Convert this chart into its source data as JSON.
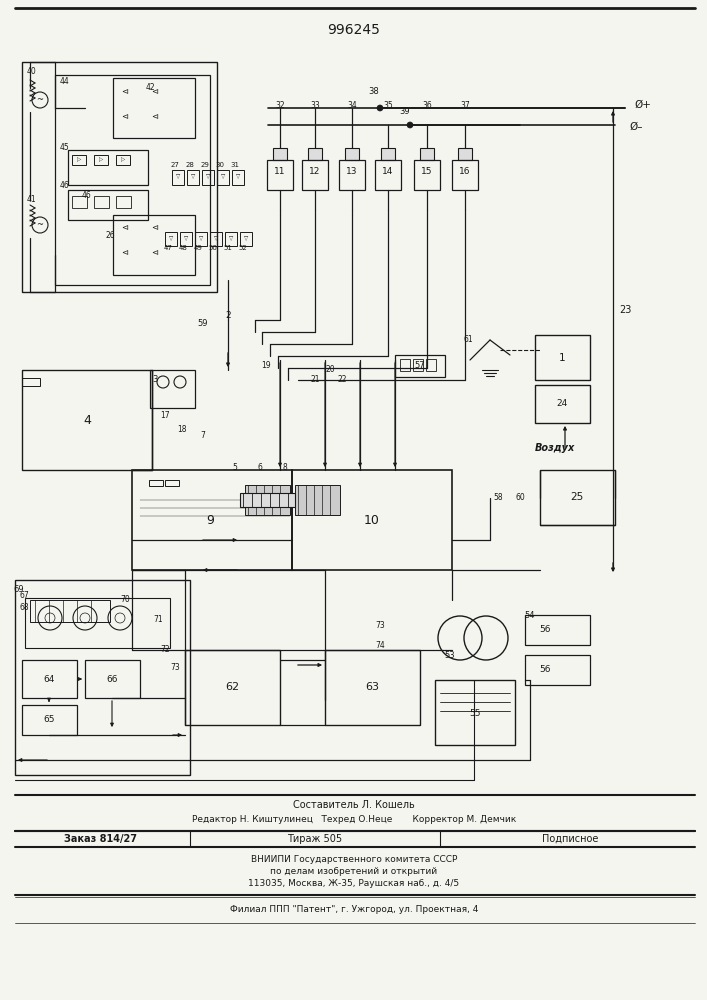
{
  "patent_number": "996245",
  "bg": "#f5f5f0",
  "lc": "#1a1a1a",
  "footer": [
    "Составитель Л. Кошель",
    "Редактор Н. Киштулинец   Техред О.Неце       Корректор М. Демчик",
    "Заказ 814/27",
    "Тираж 505",
    "Подписное",
    "ВНИИПИ Государственного комитета СССР",
    "по делам изобретений и открытий",
    "113035, Москва, Ж-35, Раушская наб., д. 4/5",
    "Филиал ППП \"Патент\", г. Ужгород, ул. Проектная, 4"
  ]
}
